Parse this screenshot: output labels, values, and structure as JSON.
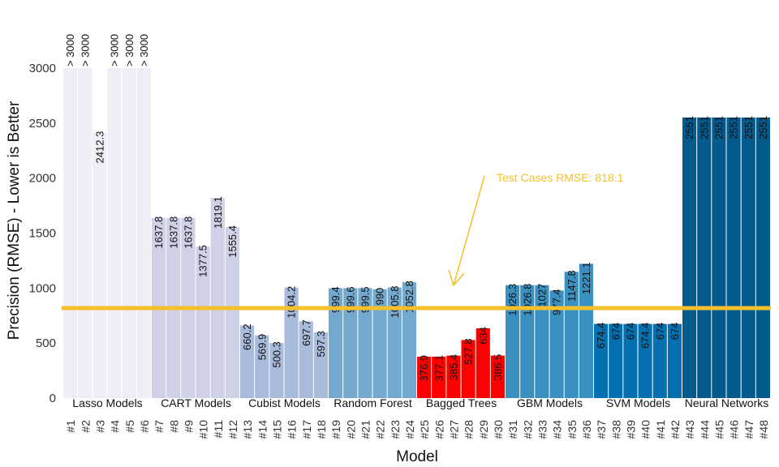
{
  "chart_data": {
    "type": "bar",
    "xlabel": "Model",
    "ylabel": "Precision (RMSE) - Lower is Better",
    "ylim": [
      0,
      3000
    ],
    "yticks": [
      "0",
      "500",
      "1000",
      "1500",
      "2000",
      "2500",
      "3000"
    ],
    "grid": false,
    "categories": [
      "#1",
      "#2",
      "#3",
      "#4",
      "#5",
      "#6",
      "#7",
      "#8",
      "#9",
      "#10",
      "#11",
      "#12",
      "#13",
      "#14",
      "#15",
      "#16",
      "#17",
      "#18",
      "#19",
      "#20",
      "#21",
      "#22",
      "#23",
      "#24",
      "#25",
      "#26",
      "#27",
      "#28",
      "#29",
      "#30",
      "#31",
      "#32",
      "#33",
      "#34",
      "#35",
      "#36",
      "#37",
      "#38",
      "#39",
      "#40",
      "#41",
      "#42",
      "#43",
      "#44",
      "#45",
      "#46",
      "#47",
      "#48"
    ],
    "values": [
      3000,
      3000,
      2412.3,
      3000,
      3000,
      3000,
      1637.8,
      1637.8,
      1637.8,
      1377.5,
      1819.1,
      1555.4,
      660.2,
      569.9,
      500.3,
      1004.2,
      697.7,
      597.3,
      999.4,
      999.6,
      999.5,
      990,
      1005.8,
      1052.8,
      376.9,
      377.1,
      385.4,
      527.8,
      634,
      386.5,
      1026.3,
      1026.8,
      1027,
      977.4,
      1147.8,
      1221.1,
      674.4,
      674,
      674,
      674.4,
      674,
      674,
      2551,
      2551,
      2551,
      2551,
      2551,
      2551
    ],
    "value_labels": [
      "> 3000",
      "> 3000",
      "2412.3",
      "> 3000",
      "> 3000",
      "> 3000",
      "1637.8",
      "1637.8",
      "1637.8",
      "1377.5",
      "1819.1",
      "1555.4",
      "660.2",
      "569.9",
      "500.3",
      "1004.2",
      "697.7",
      "597.3",
      "999.4",
      "999.6",
      "999.5",
      "990",
      "1005.8",
      "1052.8",
      "376.9",
      "377.1",
      "385.4",
      "527.8",
      "634",
      "386.5",
      "1026.3",
      "1026.8",
      "1027",
      "977.4",
      "1147.8",
      "1221.1",
      "674.4",
      "674",
      "674",
      "674.4",
      "674",
      "674",
      "2551",
      "2551",
      "2551",
      "2551",
      "2551",
      "2551"
    ],
    "groups": [
      {
        "name": "Lasso Models",
        "start": 0,
        "count": 6,
        "color": "#efedf5"
      },
      {
        "name": "CART Models",
        "start": 6,
        "count": 6,
        "color": "#cfd1e6"
      },
      {
        "name": "Cubist Models",
        "start": 12,
        "count": 6,
        "color": "#a9bbdb"
      },
      {
        "name": "Random Forest",
        "start": 18,
        "count": 6,
        "color": "#74a9cf"
      },
      {
        "name": "Bagged Trees",
        "start": 24,
        "count": 6,
        "color": "#ff0000"
      },
      {
        "name": "GBM Models",
        "start": 30,
        "count": 6,
        "color": "#3a90c0"
      },
      {
        "name": "SVM Models",
        "start": 36,
        "count": 6,
        "color": "#0570b0"
      },
      {
        "name": "Neural Networks",
        "start": 42,
        "count": 6,
        "color": "#045a8d"
      }
    ],
    "reference_line": {
      "value": 818.1,
      "label": "Test Cases RMSE: 818.1",
      "color": "#f5c02a"
    }
  }
}
